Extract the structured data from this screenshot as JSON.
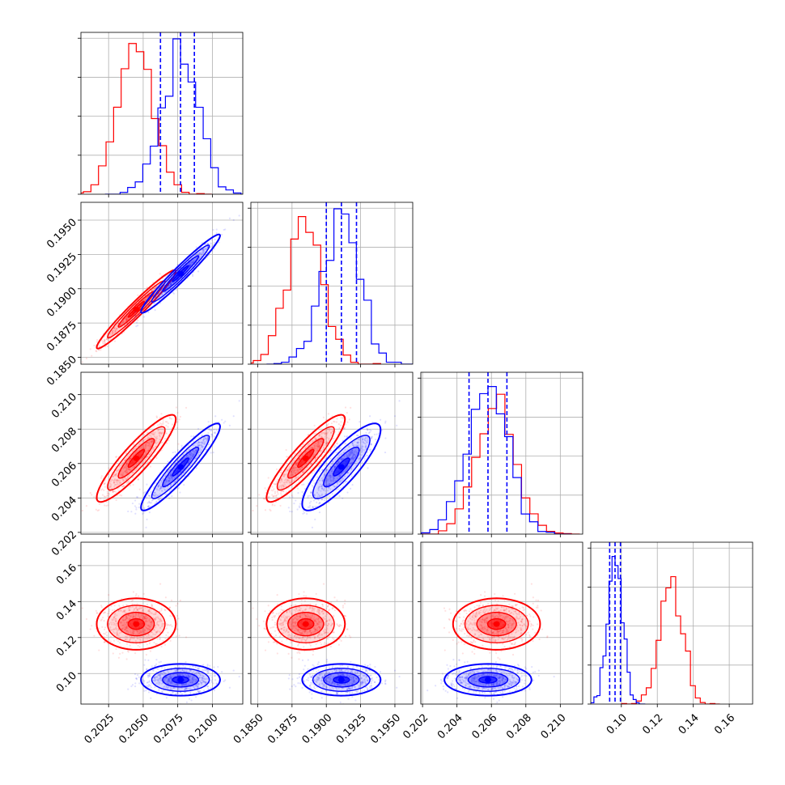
{
  "chart_data": {
    "type": "corner",
    "grid": true,
    "colors": {
      "red": "#ff0000",
      "blue": "#0000ff"
    },
    "parameters": [
      {
        "range": [
          0.2005,
          0.2122
        ],
        "ticks": [
          0.2025,
          0.205,
          0.2075,
          0.21
        ],
        "tick_labels": [
          "0.2025",
          "0.2050",
          "0.2075",
          "0.2100"
        ]
      },
      {
        "range": [
          0.1845,
          0.1963
        ],
        "ticks": [
          0.185,
          0.1875,
          0.19,
          0.1925,
          0.195
        ],
        "tick_labels": [
          "0.1850",
          "0.1875",
          "0.1900",
          "0.1925",
          "0.1950"
        ]
      },
      {
        "range": [
          0.2019,
          0.2113
        ],
        "ticks": [
          0.202,
          0.204,
          0.206,
          0.208,
          0.21
        ],
        "tick_labels": [
          "0.202",
          "0.204",
          "0.206",
          "0.208",
          "0.210"
        ]
      },
      {
        "range": [
          0.083,
          0.173
        ],
        "ticks": [
          0.1,
          0.12,
          0.14,
          0.16
        ],
        "tick_labels": [
          "0.10",
          "0.12",
          "0.14",
          "0.16"
        ]
      }
    ],
    "series": [
      {
        "color": "#ff0000",
        "means": [
          0.2045,
          0.1885,
          0.2063,
          0.1275
        ],
        "sigmas": [
          0.0013,
          0.0013,
          0.00115,
          0.0065
        ],
        "correlations": [
          [
            1,
            0.97,
            0.9,
            0
          ],
          [
            0.97,
            1,
            0.9,
            0
          ],
          [
            0.9,
            0.9,
            1,
            0
          ],
          [
            0,
            0,
            0,
            1
          ]
        ],
        "hist_peaks": [
          0.97,
          0.95,
          0.9,
          0.82
        ],
        "quantiles": []
      },
      {
        "color": "#0000ff",
        "means": [
          0.2077,
          0.1911,
          0.2058,
          0.0965
        ],
        "sigmas": [
          0.0013,
          0.0013,
          0.00115,
          0.004
        ],
        "correlations": [
          [
            1,
            0.97,
            0.93,
            0
          ],
          [
            0.97,
            1,
            0.85,
            0
          ],
          [
            0.93,
            0.85,
            1,
            0
          ],
          [
            0,
            0,
            0,
            1
          ]
        ],
        "hist_peaks": [
          1.0,
          1.0,
          0.95,
          0.95
        ],
        "quantiles": [
          [
            0.20625,
            0.2077,
            0.2087
          ],
          [
            0.19,
            0.1911,
            0.1922
          ],
          [
            0.2047,
            0.2058,
            0.2069
          ],
          [
            0.0935,
            0.0965,
            0.0995
          ]
        ]
      }
    ]
  }
}
